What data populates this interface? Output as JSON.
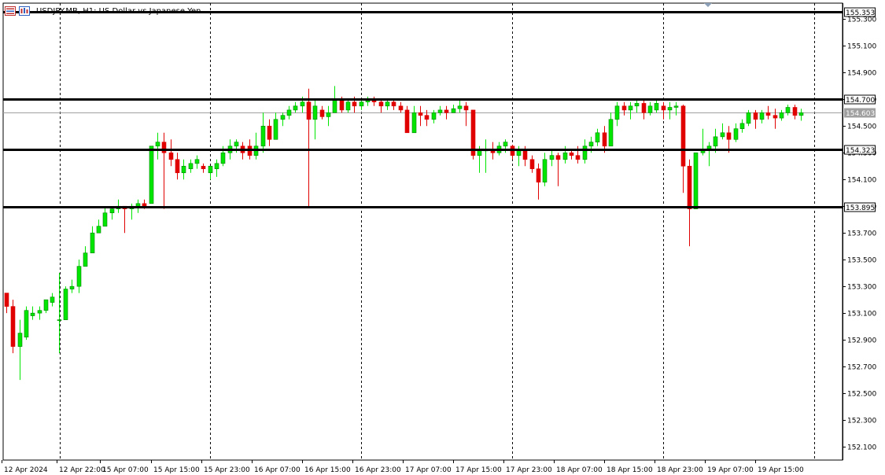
{
  "window": {
    "title": "USDJPY.MB, H1:  US Dollar vs Japanese Yen",
    "icons": [
      "chart-window-icon",
      "chart-properties-icon"
    ]
  },
  "colors": {
    "bull": "#00e600",
    "bear": "#e00000",
    "wick": "#000000",
    "level_line": "#000000",
    "bid_line": "#a0a0a0",
    "grid": "#000000",
    "axis_bg": "#ffffff",
    "bid_label_bg": "#a0a0a0"
  },
  "chart_data": {
    "type": "candlestick",
    "symbol": "USDJPY.MB",
    "timeframe": "H1",
    "ylim": [
      152.0,
      155.42
    ],
    "y_ticks": [
      "155.300",
      "155.100",
      "154.900",
      "154.700",
      "154.500",
      "154.300",
      "154.100",
      "153.900",
      "153.700",
      "153.500",
      "153.300",
      "153.100",
      "152.900",
      "152.700",
      "152.500",
      "152.300",
      "152.100"
    ],
    "x_labels": [
      "12 Apr 2024",
      "12 Apr 22:00",
      "15 Apr 07:00",
      "15 Apr 15:00",
      "15 Apr 23:00",
      "16 Apr 07:00",
      "16 Apr 15:00",
      "16 Apr 23:00",
      "17 Apr 07:00",
      "17 Apr 15:00",
      "17 Apr 23:00",
      "18 Apr 07:00",
      "18 Apr 15:00",
      "18 Apr 23:00",
      "19 Apr 07:00",
      "19 Apr 15:00"
    ],
    "horizontal_levels": [
      {
        "price": 155.353,
        "label": "155.353"
      },
      {
        "price": 154.7,
        "label": "154.700"
      },
      {
        "price": 154.323,
        "label": "154.323"
      },
      {
        "price": 153.895,
        "label": "153.895"
      }
    ],
    "bid": {
      "price": 154.603,
      "label": "154.603"
    },
    "candles": [
      {
        "o": 153.25,
        "h": 153.25,
        "l": 153.1,
        "c": 153.15
      },
      {
        "o": 153.15,
        "h": 153.2,
        "l": 152.8,
        "c": 152.85
      },
      {
        "o": 152.85,
        "h": 153.05,
        "l": 152.6,
        "c": 152.95
      },
      {
        "o": 152.92,
        "h": 153.15,
        "l": 152.9,
        "c": 153.12
      },
      {
        "o": 153.08,
        "h": 153.15,
        "l": 153.05,
        "c": 153.1
      },
      {
        "o": 153.1,
        "h": 153.15,
        "l": 153.05,
        "c": 153.12
      },
      {
        "o": 153.12,
        "h": 153.2,
        "l": 153.1,
        "c": 153.2
      },
      {
        "o": 153.18,
        "h": 153.25,
        "l": 153.15,
        "c": 153.22
      },
      {
        "o": 153.05,
        "h": 153.4,
        "l": 152.8,
        "c": 153.05
      },
      {
        "o": 153.05,
        "h": 153.3,
        "l": 153.05,
        "c": 153.28
      },
      {
        "o": 153.28,
        "h": 153.35,
        "l": 153.25,
        "c": 153.3
      },
      {
        "o": 153.3,
        "h": 153.5,
        "l": 153.25,
        "c": 153.45
      },
      {
        "o": 153.45,
        "h": 153.6,
        "l": 153.45,
        "c": 153.55
      },
      {
        "o": 153.55,
        "h": 153.75,
        "l": 153.55,
        "c": 153.7
      },
      {
        "o": 153.7,
        "h": 153.8,
        "l": 153.7,
        "c": 153.75
      },
      {
        "o": 153.75,
        "h": 153.9,
        "l": 153.75,
        "c": 153.85
      },
      {
        "o": 153.85,
        "h": 153.9,
        "l": 153.8,
        "c": 153.88
      },
      {
        "o": 153.88,
        "h": 153.95,
        "l": 153.85,
        "c": 153.9
      },
      {
        "o": 153.9,
        "h": 153.9,
        "l": 153.7,
        "c": 153.88
      },
      {
        "o": 153.88,
        "h": 153.92,
        "l": 153.8,
        "c": 153.9
      },
      {
        "o": 153.9,
        "h": 153.95,
        "l": 153.85,
        "c": 153.92
      },
      {
        "o": 153.92,
        "h": 153.95,
        "l": 153.88,
        "c": 153.9
      },
      {
        "o": 153.92,
        "h": 154.35,
        "l": 153.92,
        "c": 154.35
      },
      {
        "o": 154.35,
        "h": 154.45,
        "l": 154.25,
        "c": 154.38
      },
      {
        "o": 154.38,
        "h": 154.45,
        "l": 153.88,
        "c": 154.3
      },
      {
        "o": 154.3,
        "h": 154.4,
        "l": 154.2,
        "c": 154.25
      },
      {
        "o": 154.25,
        "h": 154.3,
        "l": 154.1,
        "c": 154.15
      },
      {
        "o": 154.15,
        "h": 154.25,
        "l": 154.1,
        "c": 154.2
      },
      {
        "o": 154.18,
        "h": 154.25,
        "l": 154.15,
        "c": 154.22
      },
      {
        "o": 154.22,
        "h": 154.28,
        "l": 154.18,
        "c": 154.25
      },
      {
        "o": 154.2,
        "h": 154.22,
        "l": 154.15,
        "c": 154.18
      },
      {
        "o": 154.15,
        "h": 154.2,
        "l": 154.1,
        "c": 154.2
      },
      {
        "o": 154.18,
        "h": 154.25,
        "l": 154.12,
        "c": 154.22
      },
      {
        "o": 154.22,
        "h": 154.35,
        "l": 154.2,
        "c": 154.3
      },
      {
        "o": 154.3,
        "h": 154.4,
        "l": 154.25,
        "c": 154.35
      },
      {
        "o": 154.35,
        "h": 154.4,
        "l": 154.3,
        "c": 154.38
      },
      {
        "o": 154.35,
        "h": 154.38,
        "l": 154.25,
        "c": 154.3
      },
      {
        "o": 154.35,
        "h": 154.4,
        "l": 154.25,
        "c": 154.28
      },
      {
        "o": 154.28,
        "h": 154.45,
        "l": 154.25,
        "c": 154.35
      },
      {
        "o": 154.35,
        "h": 154.6,
        "l": 154.3,
        "c": 154.5
      },
      {
        "o": 154.5,
        "h": 154.55,
        "l": 154.35,
        "c": 154.4
      },
      {
        "o": 154.4,
        "h": 154.6,
        "l": 154.4,
        "c": 154.55
      },
      {
        "o": 154.55,
        "h": 154.6,
        "l": 154.5,
        "c": 154.58
      },
      {
        "o": 154.58,
        "h": 154.65,
        "l": 154.55,
        "c": 154.62
      },
      {
        "o": 154.62,
        "h": 154.68,
        "l": 154.6,
        "c": 154.65
      },
      {
        "o": 154.65,
        "h": 154.72,
        "l": 154.6,
        "c": 154.68
      },
      {
        "o": 154.68,
        "h": 154.78,
        "l": 153.9,
        "c": 154.55
      },
      {
        "o": 154.55,
        "h": 154.7,
        "l": 154.4,
        "c": 154.65
      },
      {
        "o": 154.62,
        "h": 154.65,
        "l": 154.55,
        "c": 154.57
      },
      {
        "o": 154.57,
        "h": 154.65,
        "l": 154.5,
        "c": 154.6
      },
      {
        "o": 154.6,
        "h": 154.8,
        "l": 154.6,
        "c": 154.7
      },
      {
        "o": 154.7,
        "h": 154.72,
        "l": 154.6,
        "c": 154.62
      },
      {
        "o": 154.62,
        "h": 154.7,
        "l": 154.6,
        "c": 154.68
      },
      {
        "o": 154.68,
        "h": 154.72,
        "l": 154.6,
        "c": 154.65
      },
      {
        "o": 154.65,
        "h": 154.7,
        "l": 154.62,
        "c": 154.68
      },
      {
        "o": 154.68,
        "h": 154.72,
        "l": 154.65,
        "c": 154.7
      },
      {
        "o": 154.7,
        "h": 154.72,
        "l": 154.65,
        "c": 154.68
      },
      {
        "o": 154.68,
        "h": 154.7,
        "l": 154.6,
        "c": 154.65
      },
      {
        "o": 154.65,
        "h": 154.7,
        "l": 154.62,
        "c": 154.68
      },
      {
        "o": 154.68,
        "h": 154.7,
        "l": 154.62,
        "c": 154.65
      },
      {
        "o": 154.65,
        "h": 154.68,
        "l": 154.6,
        "c": 154.62
      },
      {
        "o": 154.62,
        "h": 154.65,
        "l": 154.45,
        "c": 154.45
      },
      {
        "o": 154.45,
        "h": 154.65,
        "l": 154.45,
        "c": 154.6
      },
      {
        "o": 154.6,
        "h": 154.65,
        "l": 154.5,
        "c": 154.58
      },
      {
        "o": 154.58,
        "h": 154.62,
        "l": 154.5,
        "c": 154.55
      },
      {
        "o": 154.55,
        "h": 154.62,
        "l": 154.52,
        "c": 154.6
      },
      {
        "o": 154.6,
        "h": 154.65,
        "l": 154.58,
        "c": 154.62
      },
      {
        "o": 154.62,
        "h": 154.65,
        "l": 154.55,
        "c": 154.6
      },
      {
        "o": 154.6,
        "h": 154.66,
        "l": 154.6,
        "c": 154.63
      },
      {
        "o": 154.63,
        "h": 154.7,
        "l": 154.6,
        "c": 154.65
      },
      {
        "o": 154.65,
        "h": 154.68,
        "l": 154.5,
        "c": 154.62
      },
      {
        "o": 154.62,
        "h": 154.62,
        "l": 154.25,
        "c": 154.28
      },
      {
        "o": 154.28,
        "h": 154.35,
        "l": 154.15,
        "c": 154.32
      },
      {
        "o": 154.32,
        "h": 154.4,
        "l": 154.15,
        "c": 154.32
      },
      {
        "o": 154.32,
        "h": 154.38,
        "l": 154.25,
        "c": 154.3
      },
      {
        "o": 154.3,
        "h": 154.38,
        "l": 154.28,
        "c": 154.35
      },
      {
        "o": 154.35,
        "h": 154.4,
        "l": 154.3,
        "c": 154.38
      },
      {
        "o": 154.35,
        "h": 154.36,
        "l": 154.25,
        "c": 154.28
      },
      {
        "o": 154.28,
        "h": 154.35,
        "l": 154.2,
        "c": 154.32
      },
      {
        "o": 154.32,
        "h": 154.35,
        "l": 154.2,
        "c": 154.25
      },
      {
        "o": 154.25,
        "h": 154.28,
        "l": 154.15,
        "c": 154.18
      },
      {
        "o": 154.18,
        "h": 154.22,
        "l": 153.95,
        "c": 154.08
      },
      {
        "o": 154.08,
        "h": 154.3,
        "l": 154.05,
        "c": 154.25
      },
      {
        "o": 154.25,
        "h": 154.32,
        "l": 154.2,
        "c": 154.28
      },
      {
        "o": 154.28,
        "h": 154.3,
        "l": 154.05,
        "c": 154.25
      },
      {
        "o": 154.25,
        "h": 154.35,
        "l": 154.22,
        "c": 154.3
      },
      {
        "o": 154.3,
        "h": 154.32,
        "l": 154.25,
        "c": 154.28
      },
      {
        "o": 154.28,
        "h": 154.35,
        "l": 154.22,
        "c": 154.25
      },
      {
        "o": 154.25,
        "h": 154.4,
        "l": 154.22,
        "c": 154.35
      },
      {
        "o": 154.35,
        "h": 154.42,
        "l": 154.3,
        "c": 154.38
      },
      {
        "o": 154.38,
        "h": 154.48,
        "l": 154.35,
        "c": 154.45
      },
      {
        "o": 154.45,
        "h": 154.5,
        "l": 154.3,
        "c": 154.35
      },
      {
        "o": 154.35,
        "h": 154.6,
        "l": 154.35,
        "c": 154.55
      },
      {
        "o": 154.55,
        "h": 154.68,
        "l": 154.5,
        "c": 154.65
      },
      {
        "o": 154.65,
        "h": 154.68,
        "l": 154.58,
        "c": 154.62
      },
      {
        "o": 154.62,
        "h": 154.68,
        "l": 154.55,
        "c": 154.65
      },
      {
        "o": 154.65,
        "h": 154.7,
        "l": 154.6,
        "c": 154.67
      },
      {
        "o": 154.67,
        "h": 154.7,
        "l": 154.55,
        "c": 154.6
      },
      {
        "o": 154.6,
        "h": 154.68,
        "l": 154.58,
        "c": 154.65
      },
      {
        "o": 154.62,
        "h": 154.7,
        "l": 154.6,
        "c": 154.67
      },
      {
        "o": 154.65,
        "h": 154.68,
        "l": 154.55,
        "c": 154.62
      },
      {
        "o": 154.62,
        "h": 154.68,
        "l": 154.55,
        "c": 154.64
      },
      {
        "o": 154.64,
        "h": 154.68,
        "l": 154.58,
        "c": 154.65
      },
      {
        "o": 154.65,
        "h": 154.66,
        "l": 154.0,
        "c": 154.2
      },
      {
        "o": 154.2,
        "h": 154.25,
        "l": 153.6,
        "c": 153.88
      },
      {
        "o": 153.88,
        "h": 154.3,
        "l": 153.88,
        "c": 154.3
      },
      {
        "o": 154.3,
        "h": 154.48,
        "l": 154.28,
        "c": 154.32
      },
      {
        "o": 154.32,
        "h": 154.38,
        "l": 154.2,
        "c": 154.35
      },
      {
        "o": 154.35,
        "h": 154.48,
        "l": 154.3,
        "c": 154.42
      },
      {
        "o": 154.42,
        "h": 154.52,
        "l": 154.4,
        "c": 154.45
      },
      {
        "o": 154.45,
        "h": 154.5,
        "l": 154.3,
        "c": 154.4
      },
      {
        "o": 154.4,
        "h": 154.52,
        "l": 154.38,
        "c": 154.48
      },
      {
        "o": 154.48,
        "h": 154.55,
        "l": 154.45,
        "c": 154.52
      },
      {
        "o": 154.52,
        "h": 154.62,
        "l": 154.5,
        "c": 154.6
      },
      {
        "o": 154.6,
        "h": 154.62,
        "l": 154.48,
        "c": 154.55
      },
      {
        "o": 154.55,
        "h": 154.62,
        "l": 154.52,
        "c": 154.6
      },
      {
        "o": 154.6,
        "h": 154.65,
        "l": 154.55,
        "c": 154.58
      },
      {
        "o": 154.58,
        "h": 154.63,
        "l": 154.48,
        "c": 154.56
      },
      {
        "o": 154.56,
        "h": 154.62,
        "l": 154.54,
        "c": 154.6
      },
      {
        "o": 154.6,
        "h": 154.66,
        "l": 154.58,
        "c": 154.64
      },
      {
        "o": 154.64,
        "h": 154.66,
        "l": 154.55,
        "c": 154.58
      },
      {
        "o": 154.58,
        "h": 154.63,
        "l": 154.54,
        "c": 154.6
      }
    ]
  }
}
